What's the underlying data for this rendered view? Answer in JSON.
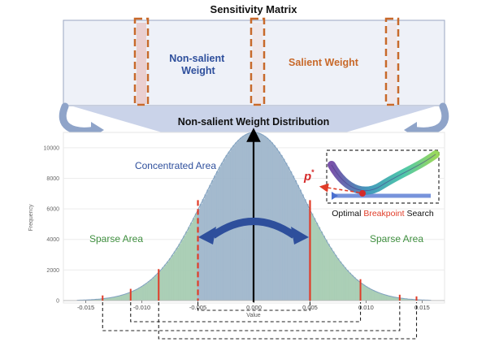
{
  "matrix": {
    "title": "Sensitivity Matrix",
    "non_salient_line1": "Non-salient",
    "non_salient_line2": "Weight",
    "salient": "Salient Weight"
  },
  "distribution_title": "Non-salient Weight Distribution",
  "areas": {
    "concentrated": "Concentrated Area",
    "sparse_left": "Sparse Area",
    "sparse_right": "Sparse Area"
  },
  "inset": {
    "symbol": "p",
    "symbol_sup": "*",
    "caption_prefix": "Optimal ",
    "caption_highlight": "Breakpoint",
    "caption_suffix": " Search"
  },
  "chart_data": {
    "type": "histogram",
    "xlabel": "Value",
    "ylabel": "Frequency",
    "xlim": [
      -0.017,
      0.017
    ],
    "ylim": [
      0,
      11000
    ],
    "x_ticks": [
      "-0.015",
      "-0.010",
      "-0.005",
      "0.000",
      "0.005",
      "0.010",
      "0.015"
    ],
    "x_tick_values": [
      -0.015,
      -0.01,
      -0.005,
      0,
      0.005,
      0.01,
      0.015
    ],
    "y_ticks": [
      "0",
      "2000",
      "4000",
      "6000",
      "8000",
      "10000"
    ],
    "y_tick_values": [
      0,
      2000,
      4000,
      6000,
      8000,
      10000
    ],
    "distribution": {
      "shape": "gaussian",
      "mean": 0.0,
      "std": 0.0045,
      "peak": 11000
    },
    "concentrated_range": [
      -0.005,
      0.005
    ],
    "inner_breakpoints": [
      -0.005,
      0.005
    ],
    "outer_breakpoints": [
      -0.0135,
      -0.011,
      -0.0085,
      0.0095,
      0.013,
      0.0145
    ],
    "colors": {
      "concentrated": "#9fb6cb",
      "sparse": "#a7ccb2",
      "breakpoint": "#e03c28",
      "arrow": "#2e4f9c",
      "salient": "#c8692a",
      "non_salient": "#2e4f9c"
    }
  }
}
